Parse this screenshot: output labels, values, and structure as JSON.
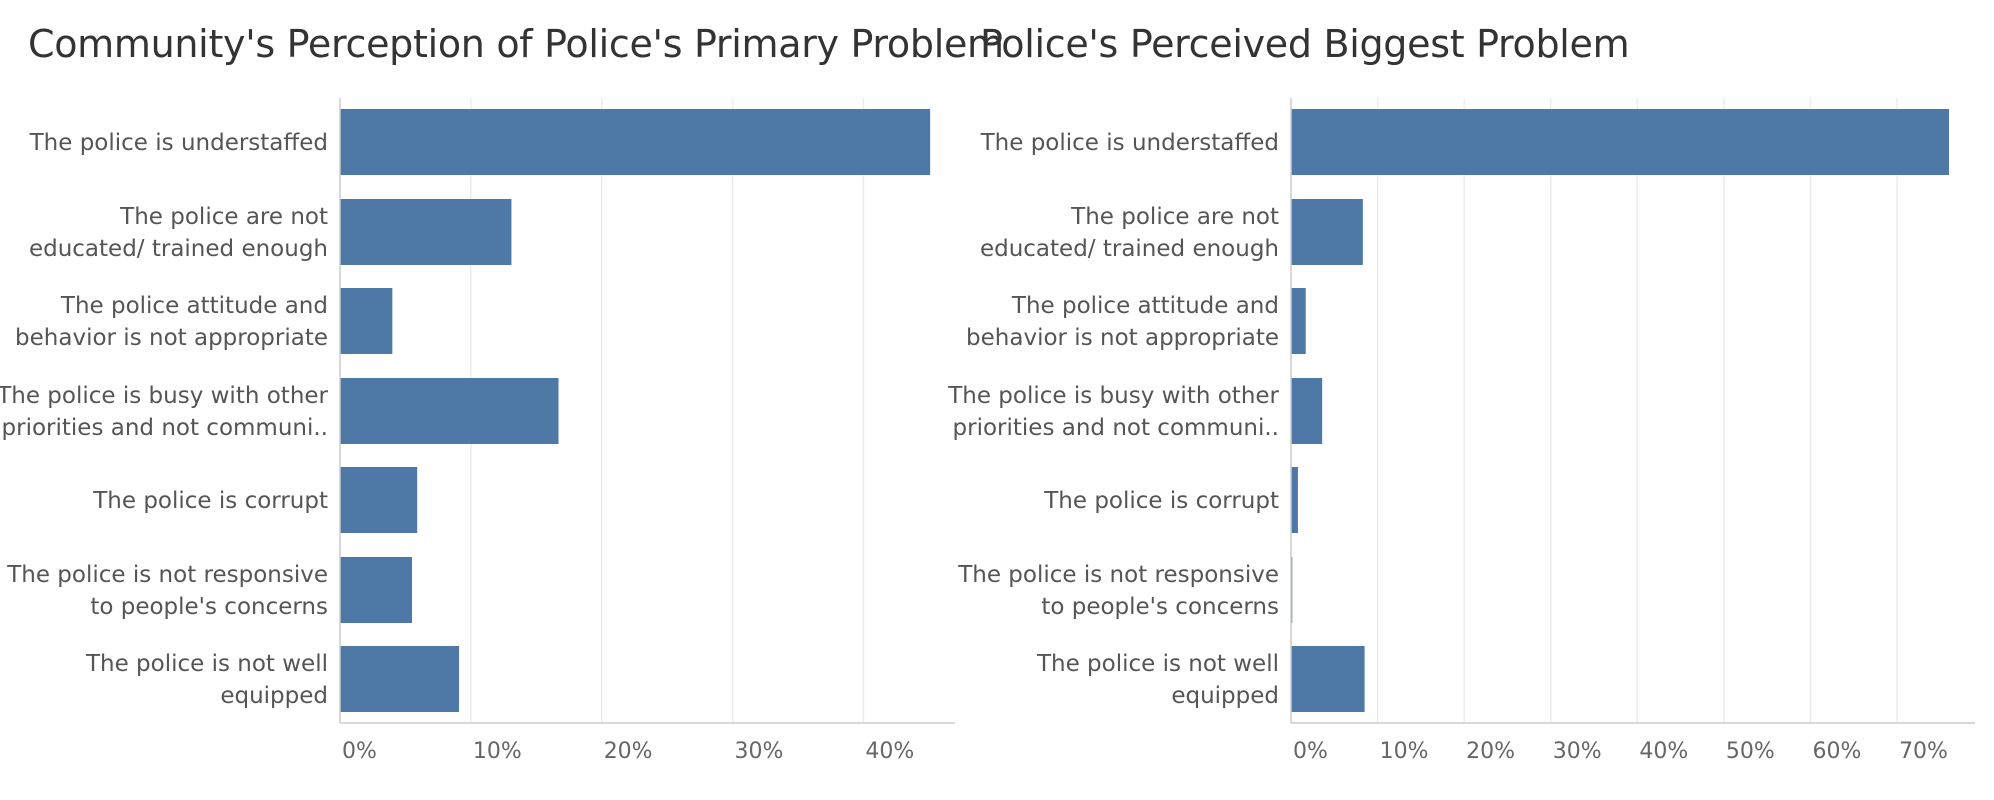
{
  "colors": {
    "bar": "#4e79a7",
    "grid": "#ececec",
    "axis": "#cccccc",
    "text": "#555555",
    "title": "#333333"
  },
  "chart_data": [
    {
      "type": "bar",
      "orientation": "horizontal",
      "title": "Community's Perception of Police's Primary Problem",
      "categories": [
        [
          "The police is understaffed"
        ],
        [
          "The police are not",
          "educated/ trained enough"
        ],
        [
          "The police attitude and",
          "behavior is not appropriate"
        ],
        [
          "The police is busy with other",
          "priorities and not communi.."
        ],
        [
          "The police is corrupt"
        ],
        [
          "The police is not responsive",
          "to people's concerns"
        ],
        [
          "The police is not well",
          "equipped"
        ]
      ],
      "values": [
        45.1,
        13.1,
        4.0,
        16.7,
        5.9,
        5.5,
        9.1
      ],
      "value_unit": "%",
      "xlim": [
        0,
        47
      ],
      "xticks": [
        0,
        10,
        20,
        30,
        40
      ],
      "xtick_labels": [
        "0%",
        "10%",
        "20%",
        "30%",
        "40%"
      ],
      "grid": "vertical"
    },
    {
      "type": "bar",
      "orientation": "horizontal",
      "title": "Police's Perceived Biggest Problem",
      "categories": [
        [
          "The police is understaffed"
        ],
        [
          "The police are not",
          "educated/ trained enough"
        ],
        [
          "The police attitude and",
          "behavior is not appropriate"
        ],
        [
          "The police is busy with other",
          "priorities and not communi.."
        ],
        [
          "The police is corrupt"
        ],
        [
          "The police is not responsive",
          "to people's concerns"
        ],
        [
          "The police is not well",
          "equipped"
        ]
      ],
      "values": [
        76.0,
        8.3,
        1.7,
        3.6,
        0.8,
        0.15,
        8.5
      ],
      "value_unit": "%",
      "xlim": [
        0,
        79
      ],
      "xticks": [
        0,
        10,
        20,
        30,
        40,
        50,
        60,
        70
      ],
      "xtick_labels": [
        "0%",
        "10%",
        "20%",
        "30%",
        "40%",
        "50%",
        "60%",
        "70%"
      ],
      "grid": "vertical"
    }
  ]
}
